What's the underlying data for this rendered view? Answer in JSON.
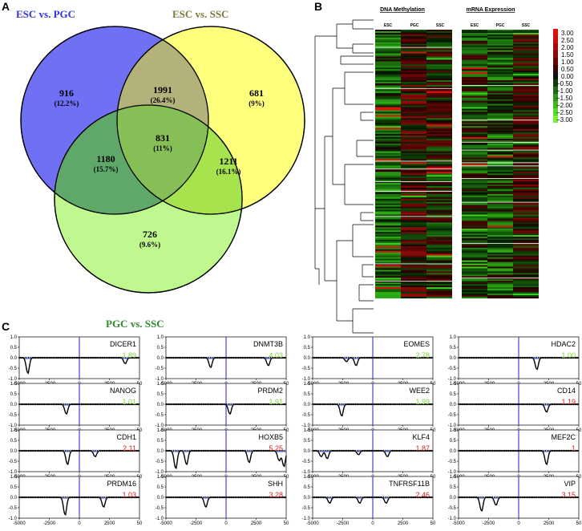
{
  "panels": {
    "a": "A",
    "b": "B",
    "c": "C"
  },
  "venn": {
    "sets": [
      {
        "name": "ESC vs. PGC",
        "color": "#3030e0",
        "fill": "#7070f5"
      },
      {
        "name": "ESC vs. SSC",
        "color": "#7a7a3a",
        "fill": "#ffff70"
      },
      {
        "name": "PGC vs. SSC",
        "color": "#2f8a2f",
        "fill": "#a9f56a"
      }
    ],
    "regions": [
      {
        "key": "esc_pgc_only",
        "count": "916",
        "pct": "(12.2%)"
      },
      {
        "key": "esc_pgc_esc_ssc",
        "count": "1991",
        "pct": "(26.4%)"
      },
      {
        "key": "esc_ssc_only",
        "count": "681",
        "pct": "(9%)"
      },
      {
        "key": "all_three",
        "count": "831",
        "pct": "(11%)"
      },
      {
        "key": "esc_pgc_pgc_ssc",
        "count": "1180",
        "pct": "(15.7%)"
      },
      {
        "key": "esc_ssc_pgc_ssc",
        "count": "1211",
        "pct": "(16.1%)"
      },
      {
        "key": "pgc_ssc_only",
        "count": "726",
        "pct": "(9.6%)"
      }
    ]
  },
  "heatmap": {
    "headers": {
      "methylation": "DNA Methylation",
      "expression": "mRNA Expression"
    },
    "columns": [
      "ESC",
      "PGC",
      "SSC"
    ],
    "legend": [
      "3.00",
      "2.50",
      "2.00",
      "1.50",
      "1.00",
      "0.50",
      "0.00",
      "−0.50",
      "−1.00",
      "−1.50",
      "−2.00",
      "−2.50",
      "−3.00"
    ]
  },
  "profiles": {
    "x_ticks": [
      "-5000",
      "-2500",
      "0",
      "2500",
      "50"
    ],
    "y_ticks": [
      "1.0",
      "0.5",
      "0.0",
      "-0.5",
      "-1.0"
    ],
    "genes": [
      {
        "gene": "DICER1",
        "score": "1.89",
        "color": "#7fd03a"
      },
      {
        "gene": "DNMT3B",
        "score": "4.03",
        "color": "#7fd03a"
      },
      {
        "gene": "EOMES",
        "score": "2.78",
        "color": "#7fd03a"
      },
      {
        "gene": "HDAC2",
        "score": "1.00",
        "color": "#7fd03a"
      },
      {
        "gene": "NANOG",
        "score": "1.01",
        "color": "#7fd03a"
      },
      {
        "gene": "PRDM2",
        "score": "1.91",
        "color": "#7fd03a"
      },
      {
        "gene": "WEE2",
        "score": "1.99",
        "color": "#7fd03a"
      },
      {
        "gene": "CD14",
        "score": "1.19",
        "color": "#d02020"
      },
      {
        "gene": "CDH1",
        "score": "2.11",
        "color": "#d02020"
      },
      {
        "gene": "HOXB5",
        "score": "5.25",
        "color": "#d02020"
      },
      {
        "gene": "KLF4",
        "score": "1.87",
        "color": "#d02020"
      },
      {
        "gene": "MEF2C",
        "score": "1",
        "color": "#d02020"
      },
      {
        "gene": "PRDM16",
        "score": "1.03",
        "color": "#d02020"
      },
      {
        "gene": "SHH",
        "score": "3.28",
        "color": "#d02020"
      },
      {
        "gene": "TNFRSF11B",
        "score": "2.46",
        "color": "#d02020"
      },
      {
        "gene": "VIP",
        "score": "3.15",
        "color": "#d02020"
      }
    ]
  }
}
